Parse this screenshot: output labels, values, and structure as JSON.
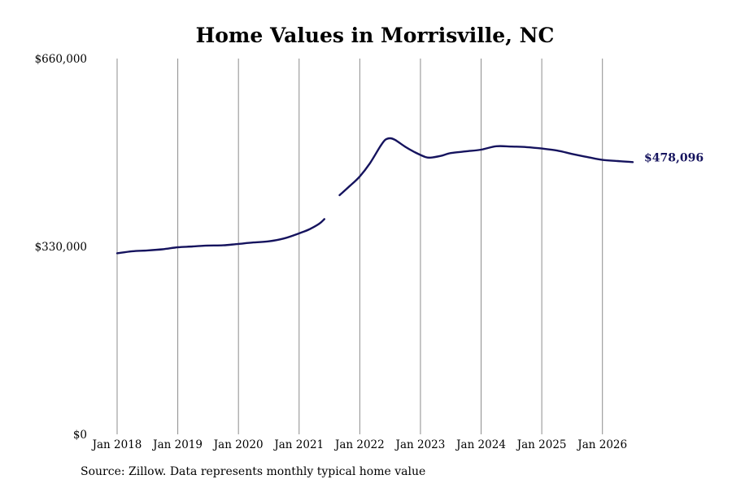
{
  "chart_data": {
    "type": "line",
    "title": "Home Values in Morrisville, NC",
    "xlabel": "",
    "ylabel": "",
    "ylim": [
      0,
      660000
    ],
    "y_ticks": [
      0,
      330000,
      660000
    ],
    "y_tick_labels": [
      "$0",
      "$330,000",
      "$660,000"
    ],
    "x_range": [
      "2018-01",
      "2026-07"
    ],
    "x_ticks": [
      "2018-01",
      "2019-01",
      "2020-01",
      "2021-01",
      "2022-01",
      "2023-01",
      "2024-01",
      "2025-01",
      "2026-01"
    ],
    "x_tick_labels": [
      "Jan 2018",
      "Jan 2019",
      "Jan 2020",
      "Jan 2021",
      "Jan 2022",
      "Jan 2023",
      "Jan 2024",
      "Jan 2025",
      "Jan 2026"
    ],
    "grid": "vertical",
    "line_color": "#15135e",
    "end_label": "$478,096",
    "end_label_color": "#15135e",
    "series": [
      {
        "values": [
          [
            "2018-01",
            318000
          ],
          [
            "2018-04",
            321500
          ],
          [
            "2018-07",
            323000
          ],
          [
            "2018-10",
            325000
          ],
          [
            "2019-01",
            328500
          ],
          [
            "2019-04",
            330000
          ],
          [
            "2019-07",
            331500
          ],
          [
            "2019-10",
            332000
          ],
          [
            "2020-01",
            334500
          ],
          [
            "2020-04",
            337000
          ],
          [
            "2020-07",
            339000
          ],
          [
            "2020-10",
            344000
          ],
          [
            "2021-01",
            353000
          ],
          [
            "2021-03",
            360000
          ],
          [
            "2021-05",
            370000
          ],
          [
            "2021-06",
            378000
          ]
        ]
      },
      {
        "values": [
          [
            "2021-09",
            420000
          ],
          [
            "2021-11",
            436000
          ],
          [
            "2022-01",
            453000
          ],
          [
            "2022-03",
            476000
          ],
          [
            "2022-05",
            505000
          ],
          [
            "2022-06",
            517000
          ],
          [
            "2022-07",
            520000
          ],
          [
            "2022-08",
            517000
          ],
          [
            "2022-10",
            505000
          ],
          [
            "2022-12",
            495000
          ],
          [
            "2023-02",
            487000
          ],
          [
            "2023-03",
            486000
          ],
          [
            "2023-05",
            489000
          ],
          [
            "2023-07",
            494000
          ],
          [
            "2023-10",
            497000
          ],
          [
            "2024-01",
            500000
          ],
          [
            "2024-04",
            506000
          ],
          [
            "2024-07",
            505500
          ],
          [
            "2024-10",
            504500
          ],
          [
            "2025-01",
            502000
          ],
          [
            "2025-04",
            498500
          ],
          [
            "2025-07",
            492500
          ],
          [
            "2025-10",
            487000
          ],
          [
            "2026-01",
            482000
          ],
          [
            "2026-04",
            480000
          ],
          [
            "2026-07",
            478096
          ]
        ]
      }
    ]
  },
  "source_text": "Source: Zillow. Data represents monthly typical home value"
}
